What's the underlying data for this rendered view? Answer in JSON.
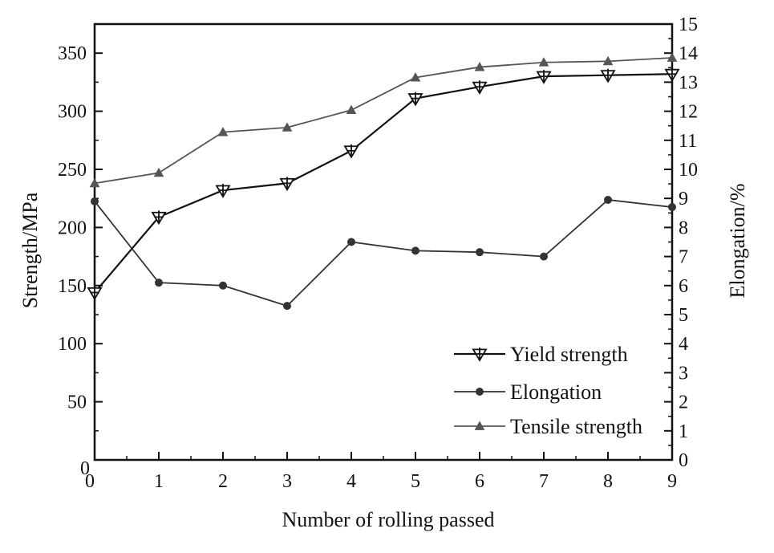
{
  "chart_data": {
    "type": "line",
    "xlabel": "Number of rolling passed",
    "ylabel_left": "Strength/MPa",
    "ylabel_right": "Elongation/%",
    "x": [
      0,
      1,
      2,
      3,
      4,
      5,
      6,
      7,
      8,
      9
    ],
    "x_ticks": [
      "0",
      "1",
      "2",
      "3",
      "4",
      "5",
      "6",
      "7",
      "8",
      "9"
    ],
    "xlim": [
      0,
      9
    ],
    "ylim_left": [
      0,
      375
    ],
    "ylim_right": [
      0,
      15
    ],
    "y_ticks_left": [
      "50",
      "100",
      "150",
      "200",
      "250",
      "300",
      "350"
    ],
    "y_ticks_right": [
      "0",
      "1",
      "2",
      "3",
      "4",
      "5",
      "6",
      "7",
      "8",
      "9",
      "10",
      "11",
      "12",
      "13",
      "14",
      "15"
    ],
    "grid": false,
    "legend_position": "bottom-right",
    "series": [
      {
        "name": "Yield strength",
        "axis": "left",
        "marker": "down-triangle-cross",
        "color": "#111111",
        "values": [
          144,
          209,
          232,
          238,
          266,
          311,
          321,
          330,
          331,
          332
        ]
      },
      {
        "name": "Elongation",
        "axis": "right",
        "marker": "circle",
        "color": "#333333",
        "values": [
          8.9,
          6.1,
          6.0,
          5.3,
          7.5,
          7.2,
          7.15,
          7.0,
          8.95,
          8.7
        ]
      },
      {
        "name": "Tensile strength",
        "axis": "left",
        "marker": "triangle",
        "color": "#555555",
        "values": [
          238,
          247,
          282,
          286,
          301,
          329,
          338,
          342,
          343,
          346
        ]
      }
    ]
  }
}
